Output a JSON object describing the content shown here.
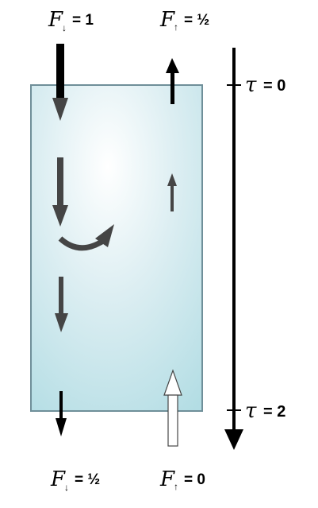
{
  "labels": {
    "top_down": {
      "symbol": "F",
      "arrow": "↓",
      "value": "= 1"
    },
    "top_up": {
      "symbol": "F",
      "arrow": "↑",
      "value": "= ½"
    },
    "bottom_down": {
      "symbol": "F",
      "arrow": "↓",
      "value": "= ½"
    },
    "bottom_up": {
      "symbol": "F",
      "arrow": "↑",
      "value": "= 0"
    },
    "tau_top": {
      "symbol": "τ",
      "value": "= 0"
    },
    "tau_bottom": {
      "symbol": "τ",
      "value": "= 2"
    }
  },
  "colors": {
    "box_center": "#ffffff",
    "box_edge": "#a9d7df",
    "box_border": "#6f8f99",
    "arrow_dark": "#454545",
    "arrow_black": "#000000"
  }
}
